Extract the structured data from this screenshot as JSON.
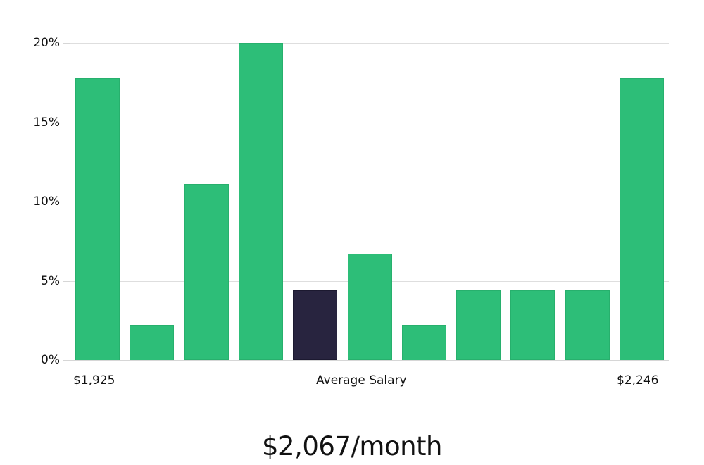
{
  "chart_data": {
    "type": "bar",
    "title": "",
    "xlabel": "Average Salary",
    "ylabel": "",
    "ylim": [
      0,
      20
    ],
    "yticks": [
      "0%",
      "5%",
      "10%",
      "15%",
      "20%"
    ],
    "x_range_labels": {
      "min": "$1,925",
      "center": "Average Salary",
      "max": "$2,246"
    },
    "categories": [
      "bin1",
      "bin2",
      "bin3",
      "bin4",
      "bin5",
      "bin6",
      "bin7",
      "bin8",
      "bin9",
      "bin10",
      "bin11"
    ],
    "values": [
      17.8,
      2.2,
      11.1,
      20.0,
      4.4,
      6.7,
      2.2,
      4.4,
      4.4,
      4.4,
      17.8
    ],
    "highlight_index": 4,
    "grid": true,
    "legend": null,
    "colors": {
      "bar": "#2dbe78",
      "highlight": "#28243f",
      "grid": "#dedede"
    }
  },
  "summary": {
    "value": "$2,067/month"
  }
}
